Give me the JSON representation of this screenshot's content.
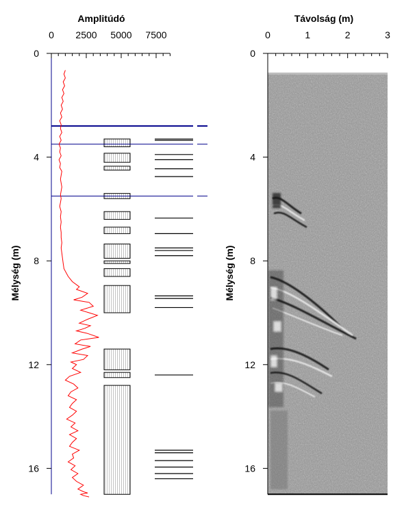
{
  "chart_data": [
    {
      "type": "line",
      "panel": "amplitude-log",
      "title": "",
      "xlabel": "Amplitúdó",
      "ylabel": "Mélység (m)",
      "x_ticks": [
        0,
        2500,
        5000,
        7500
      ],
      "y_ticks": [
        0,
        4,
        8,
        12,
        16
      ],
      "xlim": [
        0,
        8500
      ],
      "ylim": [
        0,
        17
      ],
      "y_inverted": true,
      "series": [
        {
          "color": "#ff0000",
          "x": [
            1000,
            900,
            1000,
            850,
            950,
            800,
            900,
            750,
            850,
            700,
            800,
            650,
            750,
            600,
            700,
            650,
            750,
            600,
            700,
            550,
            650,
            600,
            700,
            550,
            650,
            600,
            750,
            700,
            650,
            700,
            750,
            700,
            650,
            700,
            650,
            600,
            700,
            650,
            700,
            650,
            700,
            700,
            750,
            700,
            750,
            800,
            850,
            900,
            1200,
            1500,
            2000,
            1800,
            2600,
            2200,
            1600,
            2700,
            3000,
            2100,
            2700,
            3300,
            2600,
            2000,
            2800,
            2400,
            1800,
            2600,
            3400,
            2100,
            1700,
            2800,
            2200,
            1500,
            2600,
            2300,
            1400,
            1800,
            1500,
            2100,
            1300,
            1000,
            1600,
            1900,
            1400,
            1200,
            1800,
            1500,
            1300,
            1800,
            1500,
            1100,
            1700,
            1400,
            1900,
            1300,
            1800,
            1500,
            1300,
            2000,
            1500,
            1600,
            1200,
            1700,
            1400,
            1900,
            1500,
            1800,
            2300,
            1900,
            2300,
            2600,
            2100,
            2300,
            2700
          ],
          "y": [
            0.65,
            0.8,
            0.95,
            1.1,
            1.25,
            1.4,
            1.55,
            1.7,
            1.85,
            2.0,
            2.15,
            2.3,
            2.45,
            2.6,
            2.75,
            2.9,
            3.05,
            3.2,
            3.35,
            3.5,
            3.65,
            3.8,
            3.95,
            4.1,
            4.25,
            4.4,
            4.55,
            4.7,
            4.85,
            5.0,
            5.15,
            5.3,
            5.45,
            5.6,
            5.75,
            5.9,
            6.1,
            6.3,
            6.5,
            6.7,
            6.9,
            7.1,
            7.3,
            7.5,
            7.7,
            7.9,
            8.1,
            8.3,
            8.6,
            8.8,
            9.0,
            9.1,
            9.25,
            9.4,
            9.5,
            9.6,
            9.75,
            9.9,
            10.0,
            10.1,
            10.25,
            10.4,
            10.5,
            10.6,
            10.7,
            10.8,
            10.95,
            11.05,
            11.2,
            11.3,
            11.4,
            11.55,
            11.65,
            11.8,
            11.9,
            12.0,
            12.15,
            12.3,
            12.45,
            12.6,
            12.75,
            12.9,
            13.05,
            13.2,
            13.35,
            13.5,
            13.65,
            13.8,
            13.95,
            14.1,
            14.25,
            14.4,
            14.55,
            14.7,
            14.85,
            15.0,
            15.15,
            15.3,
            15.45,
            15.6,
            15.75,
            15.9,
            16.05,
            16.2,
            16.35,
            16.5,
            16.65,
            16.8,
            16.9,
            16.95,
            17.0,
            17.05,
            17.1
          ]
        }
      ],
      "horizontal_markers": [
        2.8,
        3.5,
        5.5
      ],
      "marker_color": "#00008b",
      "interval_boxes": [
        {
          "top": 3.3,
          "bottom": 3.6
        },
        {
          "top": 3.85,
          "bottom": 4.2
        },
        {
          "top": 4.35,
          "bottom": 4.5
        },
        {
          "top": 5.4,
          "bottom": 5.6
        },
        {
          "top": 6.1,
          "bottom": 6.4
        },
        {
          "top": 6.7,
          "bottom": 6.95
        },
        {
          "top": 7.35,
          "bottom": 7.9
        },
        {
          "top": 8.0,
          "bottom": 8.1
        },
        {
          "top": 8.3,
          "bottom": 8.6
        },
        {
          "top": 8.95,
          "bottom": 10.0
        },
        {
          "top": 11.4,
          "bottom": 12.2
        },
        {
          "top": 12.3,
          "bottom": 12.5
        },
        {
          "top": 12.8,
          "bottom": 17.0
        }
      ],
      "event_lines": [
        3.3,
        3.35,
        3.9,
        4.1,
        4.45,
        4.75,
        6.35,
        6.95,
        7.5,
        7.6,
        7.8,
        9.35,
        9.45,
        9.8,
        12.4,
        15.3,
        15.4,
        15.7,
        15.95,
        16.2,
        16.4
      ]
    },
    {
      "type": "heatmap",
      "panel": "radargram",
      "title": "",
      "xlabel": "Távolság (m)",
      "ylabel": "Mélység (m)",
      "x_ticks": [
        0,
        1,
        2,
        3
      ],
      "y_ticks": [
        0,
        4,
        8,
        12,
        16
      ],
      "xlim": [
        0,
        3
      ],
      "ylim": [
        0,
        17
      ],
      "y_inverted": true,
      "data_top": 0.7,
      "data_bottom": 17.0,
      "colormap": "grayscale"
    }
  ]
}
